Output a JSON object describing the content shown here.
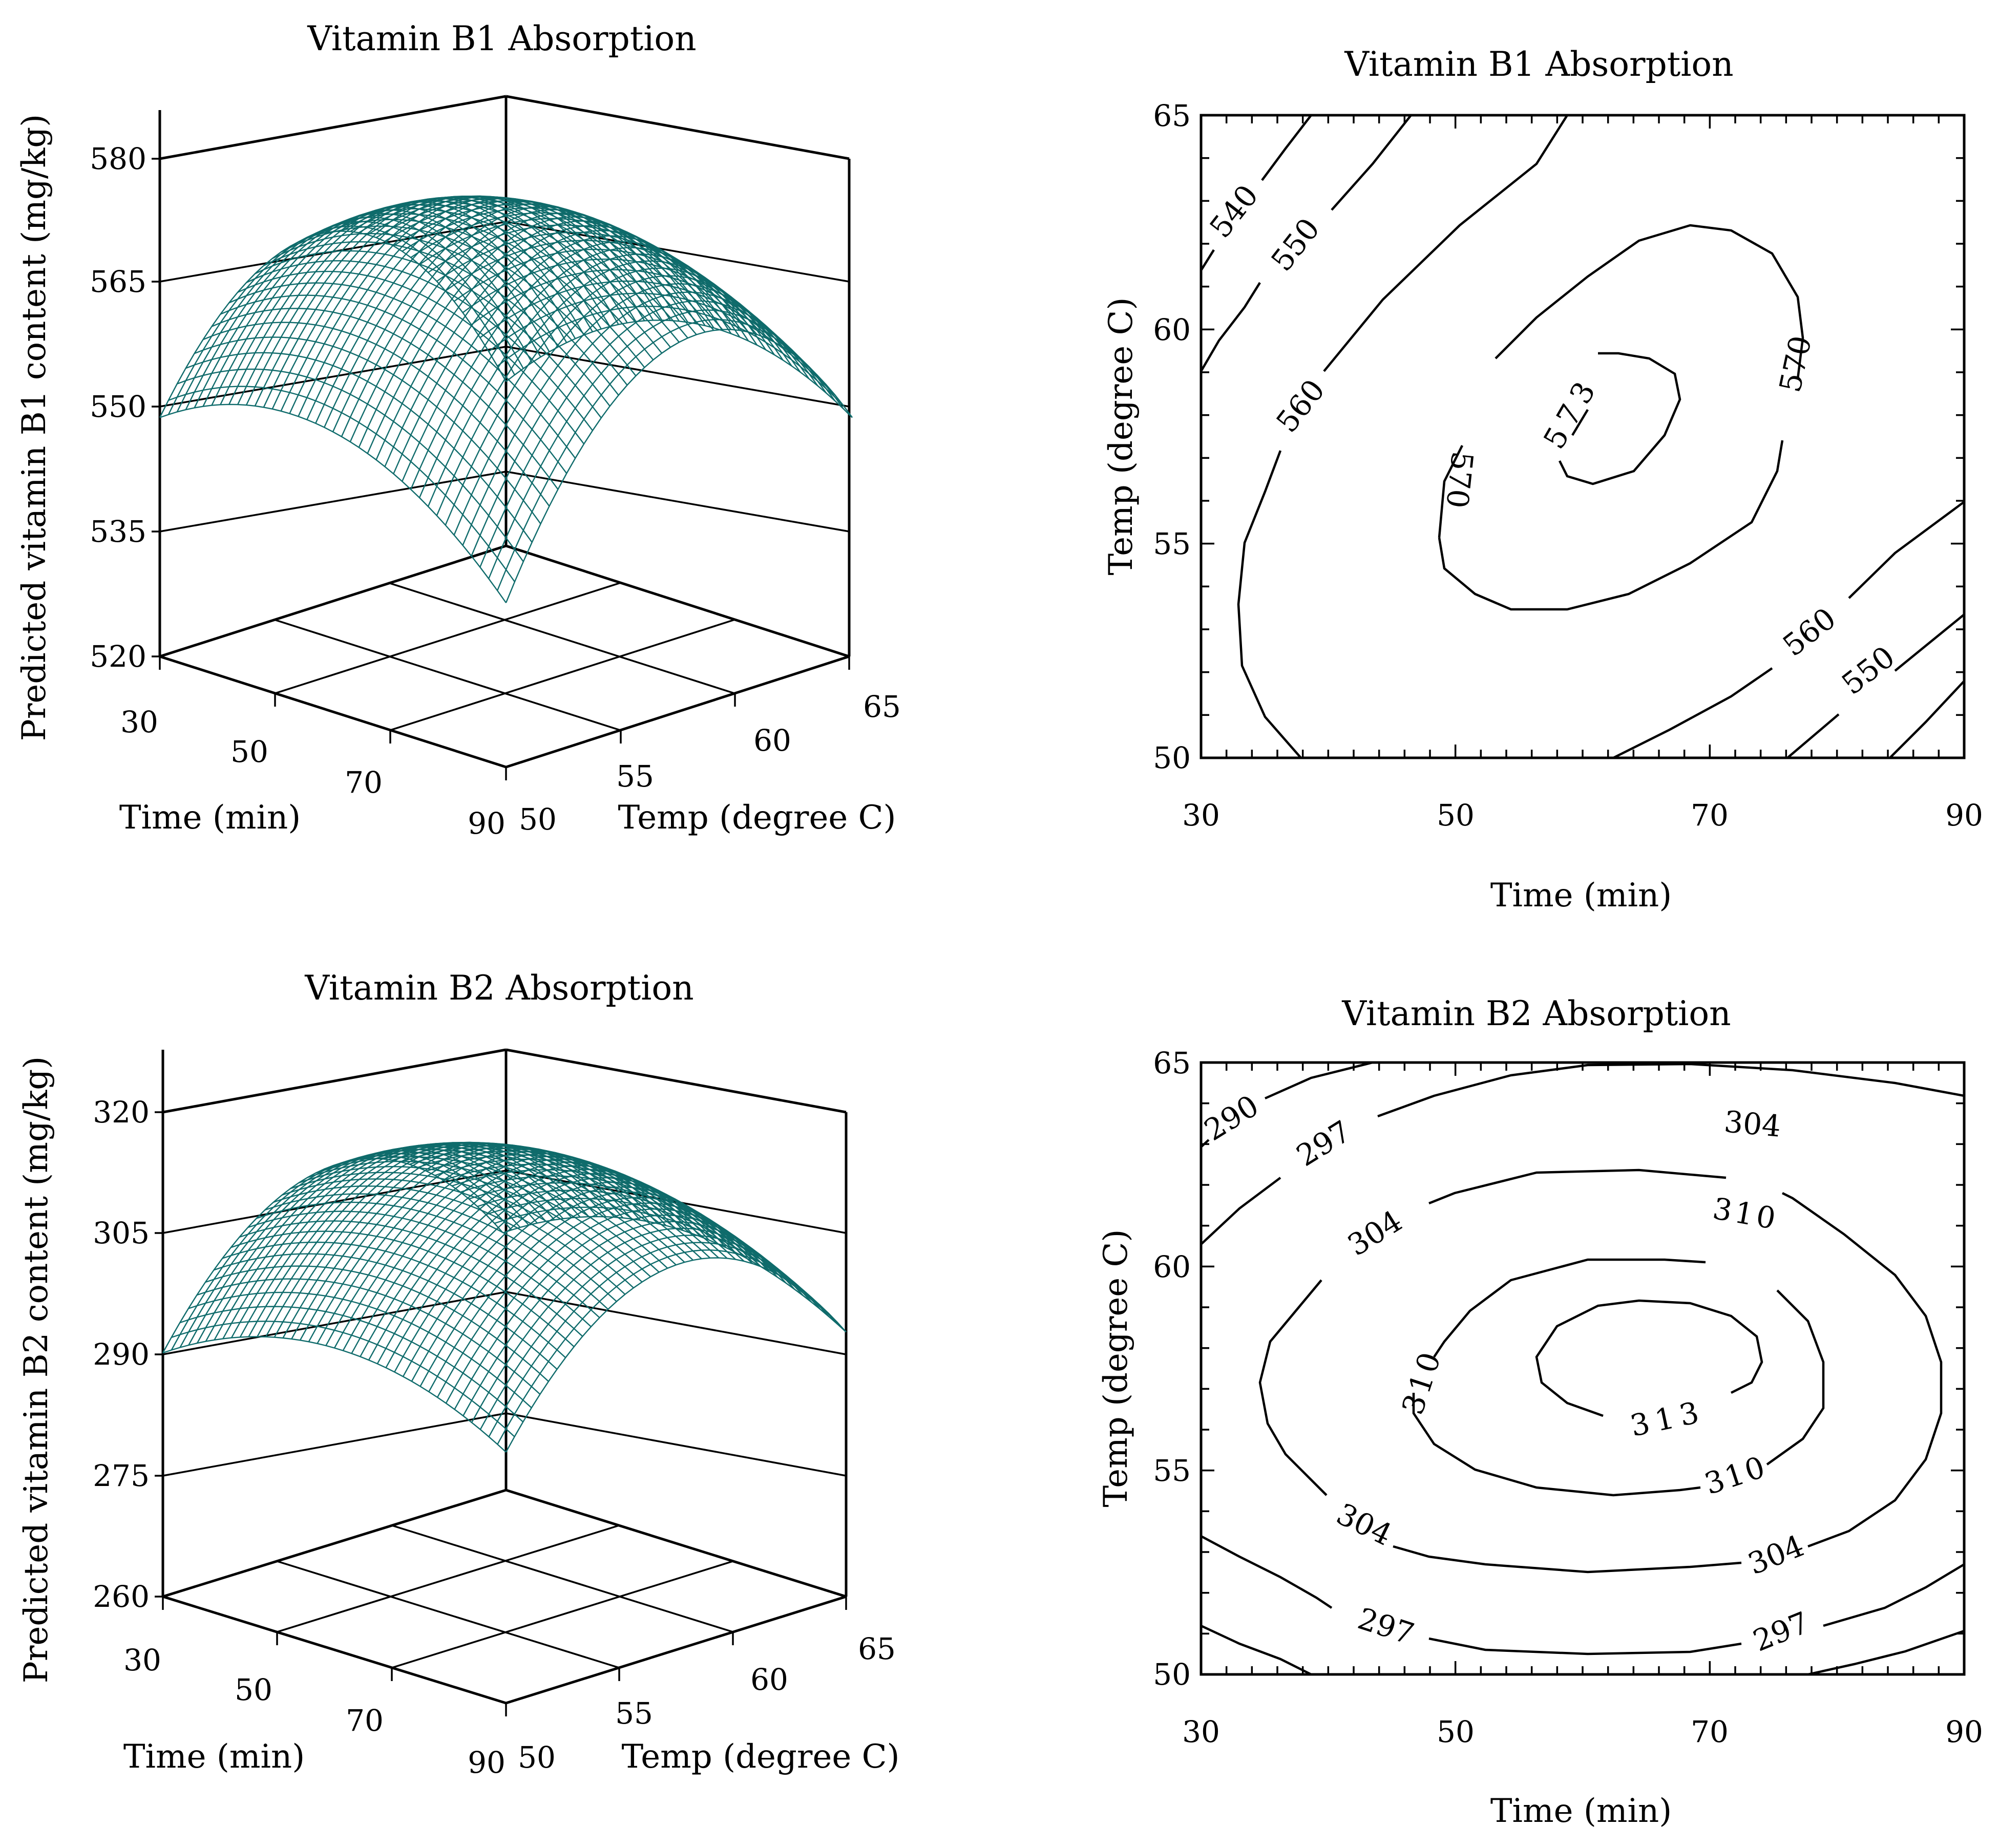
{
  "chart_data": [
    {
      "type": "surface",
      "title": "Vitamin B1 Absorption",
      "xlabel": "Time (min)",
      "ylabel": "Temp (degree C)",
      "zlabel": "Predicted vitamin B1 content (mg/kg)",
      "x_ticks": [
        "30",
        "50",
        "70",
        "90"
      ],
      "y_ticks": [
        "50",
        "55",
        "60",
        "65"
      ],
      "z_ticks": [
        "520",
        "535",
        "550",
        "565",
        "580"
      ],
      "xlim": [
        30,
        90
      ],
      "ylim": [
        50,
        65
      ],
      "zlim": [
        520,
        585
      ],
      "surface_color": "#0f6b6b",
      "model": {
        "center_x": 60,
        "center_y": 57.5,
        "peak": 574,
        "a": 0.0105,
        "b": 0.36,
        "c": 0.02
      }
    },
    {
      "type": "contour",
      "title": "Vitamin B1 Absorption",
      "xlabel": "Time (min)",
      "ylabel": "Temp (degree C)",
      "x_ticks": [
        "30",
        "50",
        "70",
        "90"
      ],
      "y_ticks": [
        "50",
        "55",
        "60",
        "65"
      ],
      "xlim": [
        30,
        90
      ],
      "ylim": [
        50,
        65
      ],
      "levels": [
        540,
        550,
        560,
        570,
        573
      ],
      "contour_labels": [
        "540",
        "550",
        "560",
        "560",
        "550",
        "570",
        "570",
        "573"
      ]
    },
    {
      "type": "surface",
      "title": "Vitamin B2 Absorption",
      "xlabel": "Time (min)",
      "ylabel": "Temp (degree C)",
      "zlabel": "Predicted vitamin B2 content (mg/kg)",
      "x_ticks": [
        "30",
        "50",
        "70",
        "90"
      ],
      "y_ticks": [
        "50",
        "55",
        "60",
        "65"
      ],
      "z_ticks": [
        "260",
        "275",
        "290",
        "305",
        "320"
      ],
      "xlim": [
        30,
        90
      ],
      "ylim": [
        50,
        65
      ],
      "zlim": [
        260,
        327
      ],
      "surface_color": "#0f6b6b",
      "model": {
        "center_x": 61,
        "center_y": 57.7,
        "peak": 314,
        "a": 0.0075,
        "b": 0.28,
        "c": 0
      }
    },
    {
      "type": "contour",
      "title": "Vitamin B2 Absorption",
      "xlabel": "Time (min)",
      "ylabel": "Temp (degree C)",
      "x_ticks": [
        "30",
        "50",
        "70",
        "90"
      ],
      "y_ticks": [
        "50",
        "55",
        "60",
        "65"
      ],
      "xlim": [
        30,
        90
      ],
      "ylim": [
        50,
        65
      ],
      "levels": [
        290,
        297,
        304,
        310,
        313
      ],
      "contour_labels": [
        "290",
        "297",
        "304",
        "304",
        "310",
        "310",
        "310",
        "313",
        "304",
        "304",
        "297",
        "297"
      ]
    }
  ]
}
